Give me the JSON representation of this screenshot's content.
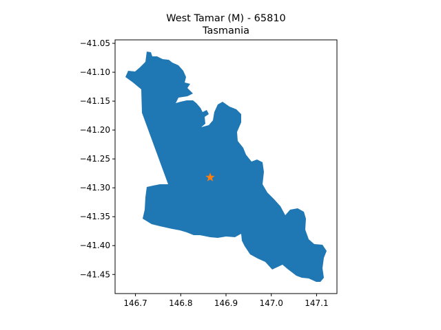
{
  "chart_data": {
    "type": "map",
    "title": "West Tamar (M) - 65810",
    "subtitle": "Tasmania",
    "xlabel": "",
    "ylabel": "",
    "xlim": [
      146.655,
      147.145
    ],
    "ylim": [
      -41.483,
      -41.044
    ],
    "xticks": [
      "146.7",
      "146.8",
      "146.9",
      "147.0",
      "147.1"
    ],
    "yticks": [
      "−41.05",
      "−41.10",
      "−41.15",
      "−41.20",
      "−41.25",
      "−41.30",
      "−41.35",
      "−41.40",
      "−41.45"
    ],
    "region_color": "#1f77b4",
    "marker": {
      "lon": 146.865,
      "lat": -41.282,
      "color": "#ff7f0e",
      "shape": "star"
    }
  }
}
